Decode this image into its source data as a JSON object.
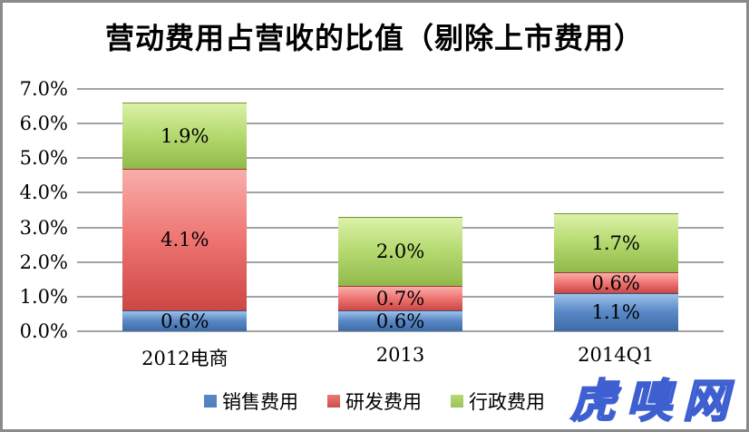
{
  "title": "营动费用占营收的比值（剔除上市费用）",
  "watermark": "虎嗅网",
  "colors": {
    "gridline": "#a3a3a3",
    "frame": "#8a8a8a",
    "text": "#000000",
    "watermark_fill": "#acbfee",
    "watermark_outline": "#3d5fd0"
  },
  "chart_data": {
    "type": "bar",
    "stacked": true,
    "title": "营动费用占营收的比值（剔除上市费用）",
    "categories": [
      "2012电商",
      "2013",
      "2014Q1"
    ],
    "series": [
      {
        "name": "销售费用",
        "color": "#4f81bd",
        "gradient": {
          "light": "#9dc1e8",
          "mid": "#5988c6",
          "dark": "#3e6ca6"
        },
        "values": [
          0.6,
          0.6,
          1.1
        ],
        "labels": [
          "0.6%",
          "0.6%",
          "1.1%"
        ]
      },
      {
        "name": "研发费用",
        "color": "#c9504c",
        "gradient": {
          "light": "#f8aeab",
          "mid": "#ee7673",
          "dark": "#cc4744"
        },
        "values": [
          4.1,
          0.7,
          0.6
        ],
        "labels": [
          "4.1%",
          "0.7%",
          "0.6%"
        ]
      },
      {
        "name": "行政费用",
        "color": "#9cc35b",
        "gradient": {
          "light": "#dcf1a8",
          "mid": "#b5da70",
          "dark": "#90b94a"
        },
        "values": [
          1.9,
          2.0,
          1.7
        ],
        "labels": [
          "1.9%",
          "2.0%",
          "1.7%"
        ]
      }
    ],
    "y_ticks": [
      "0.0%",
      "1.0%",
      "2.0%",
      "3.0%",
      "4.0%",
      "5.0%",
      "6.0%",
      "7.0%"
    ],
    "ylim": [
      0,
      7
    ],
    "xlabel": "",
    "ylabel": "",
    "grid": true,
    "data_labels": true,
    "legend_position": "bottom"
  }
}
